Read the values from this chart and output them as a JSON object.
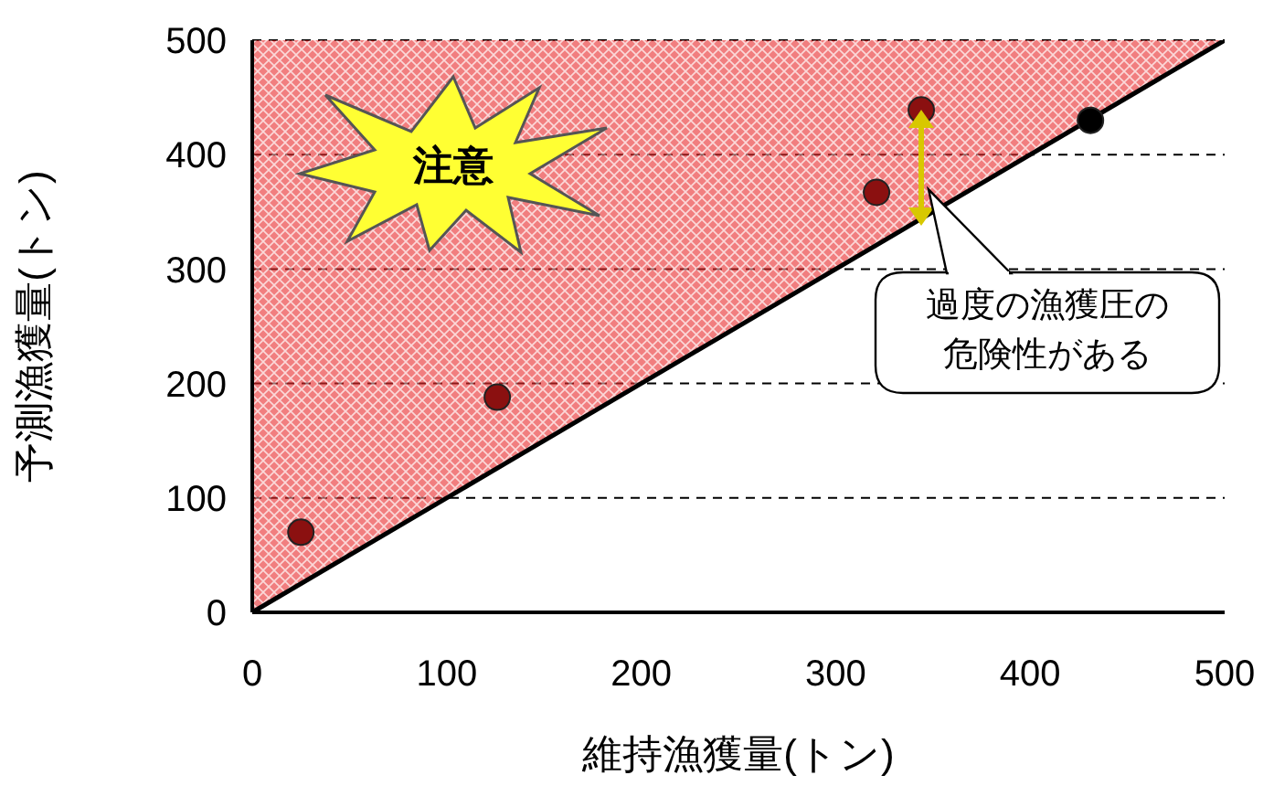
{
  "chart_data": {
    "type": "scatter",
    "xlabel": "維持漁獲量(トン)",
    "ylabel": "予測漁獲量(トン)",
    "xlim": [
      0,
      500
    ],
    "ylim": [
      0,
      500
    ],
    "xticks": [
      0,
      100,
      200,
      300,
      400,
      500
    ],
    "yticks": [
      0,
      100,
      200,
      300,
      400,
      500
    ],
    "grid": "y",
    "annotations": [
      "注意",
      "過度の漁獲圧の危険性がある"
    ],
    "series": [
      {
        "type": "line",
        "x": [
          0,
          500
        ],
        "values": [
          0,
          500
        ],
        "lower": [
          0,
          500
        ],
        "upper": [
          500,
          500
        ],
        "color": "#000000",
        "line_style": "solid",
        "marker": "none"
      },
      {
        "x": [
          25,
          126,
          321,
          344,
          431
        ],
        "values": [
          70,
          188,
          367,
          439,
          430
        ],
        "colors": [
          "#8b1010",
          "#8b1010",
          "#8b1010",
          "#8b1010",
          "#000000"
        ],
        "marker": "circle"
      }
    ]
  }
}
